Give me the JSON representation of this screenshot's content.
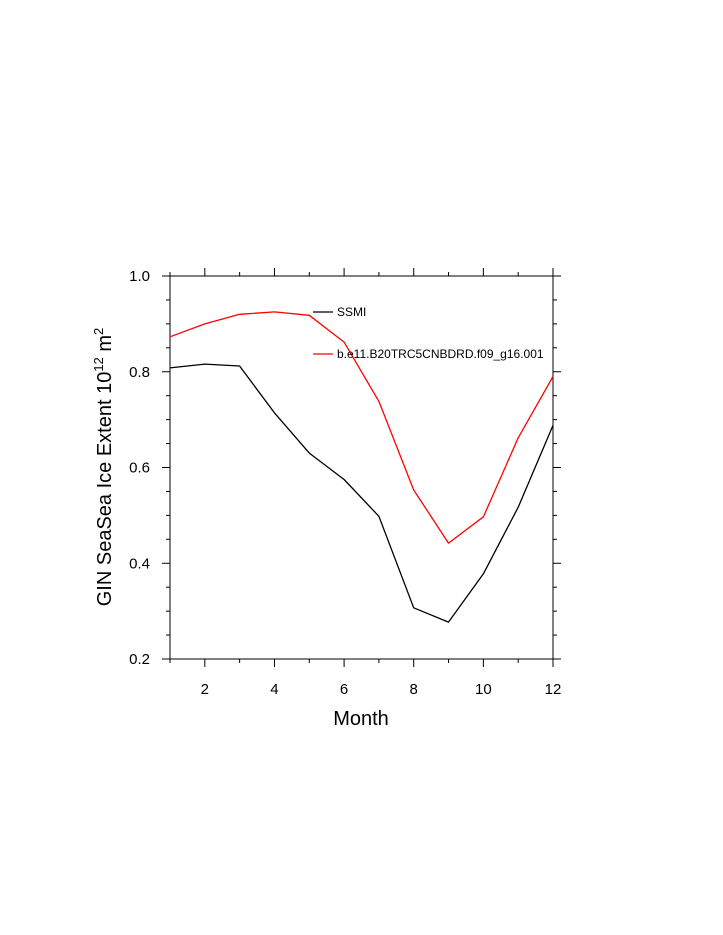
{
  "chart_data": {
    "type": "line",
    "xlabel": "Month",
    "ylabel": {
      "base": "GIN SeaSea Ice Extent 10",
      "exp1": "12",
      "unit": " m",
      "exp2": "2"
    },
    "xlim": [
      1,
      12
    ],
    "ylim": [
      0.2,
      1.0
    ],
    "x_ticks": [
      2,
      4,
      6,
      8,
      10,
      12
    ],
    "y_ticks": [
      0.2,
      0.4,
      0.6,
      0.8,
      1.0
    ],
    "y_tick_labels": [
      "0.2",
      "0.4",
      "0.6",
      "0.8",
      "1.0"
    ],
    "grid": false,
    "legend_placement": "top-right",
    "x": [
      1,
      2,
      3,
      4,
      5,
      6,
      7,
      8,
      9,
      10,
      11,
      12
    ],
    "series": [
      {
        "name": "SSMI",
        "color": "#000000",
        "values": [
          0.808,
          0.816,
          0.812,
          0.714,
          0.63,
          0.575,
          0.498,
          0.307,
          0.277,
          0.378,
          0.517,
          0.688
        ]
      },
      {
        "name": "b.e11.B20TRC5CNBDRD.f09_g16.001",
        "color": "#ff0000",
        "values": [
          0.873,
          0.9,
          0.92,
          0.925,
          0.918,
          0.862,
          0.738,
          0.553,
          0.442,
          0.497,
          0.662,
          0.79
        ]
      }
    ]
  }
}
